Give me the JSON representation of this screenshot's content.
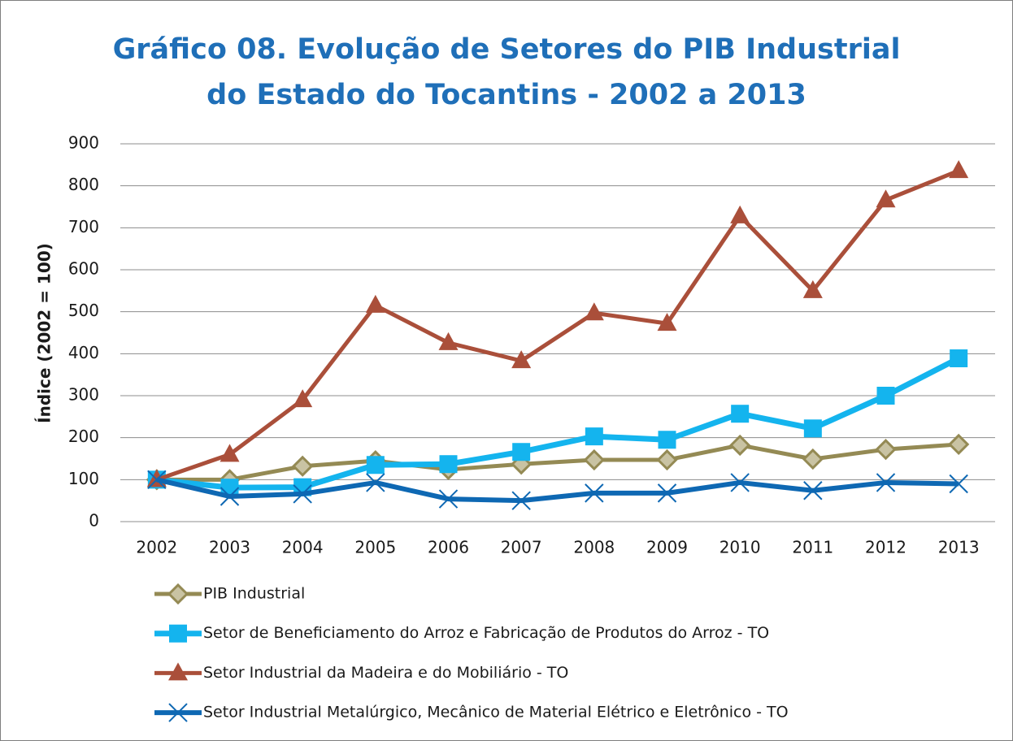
{
  "chart_data": {
    "type": "line",
    "title": [
      "Gráfico 08. Evolução de Setores do PIB Industrial",
      "do Estado do Tocantins - 2002 a 2013"
    ],
    "y_label": "Índice (2002 = 100)",
    "categories": [
      "2002",
      "2003",
      "2004",
      "2005",
      "2006",
      "2007",
      "2008",
      "2009",
      "2010",
      "2011",
      "2012",
      "2013"
    ],
    "ylim": [
      0,
      900
    ],
    "yticks": [
      0,
      100,
      200,
      300,
      400,
      500,
      600,
      700,
      800,
      900
    ],
    "grid": true,
    "legend": "bottom",
    "series": [
      {
        "name": "PIB Industrial",
        "color": "#948a54",
        "marker": "diamond",
        "values": [
          100,
          100,
          132,
          145,
          124,
          137,
          147,
          147,
          182,
          149,
          172,
          184
        ]
      },
      {
        "name": "Setor de Beneficiamento do Arroz e Fabricação de Produtos do Arroz - TO",
        "color": "#14b4ee",
        "marker": "square",
        "values": [
          100,
          81,
          82,
          135,
          137,
          166,
          203,
          195,
          257,
          222,
          300,
          389
        ]
      },
      {
        "name": "Setor Industrial da Madeira e do Mobiliário - TO",
        "color": "#aa4f3a",
        "marker": "triangle",
        "values": [
          100,
          160,
          290,
          515,
          426,
          383,
          497,
          472,
          728,
          550,
          766,
          836
        ]
      },
      {
        "name": "Setor Industrial Metalúrgico, Mecânico de Material Elétrico e Eletrônico - TO",
        "color": "#0e68b3",
        "marker": "x",
        "values": [
          100,
          60,
          66,
          93,
          54,
          50,
          68,
          68,
          93,
          74,
          93,
          90
        ]
      }
    ]
  }
}
